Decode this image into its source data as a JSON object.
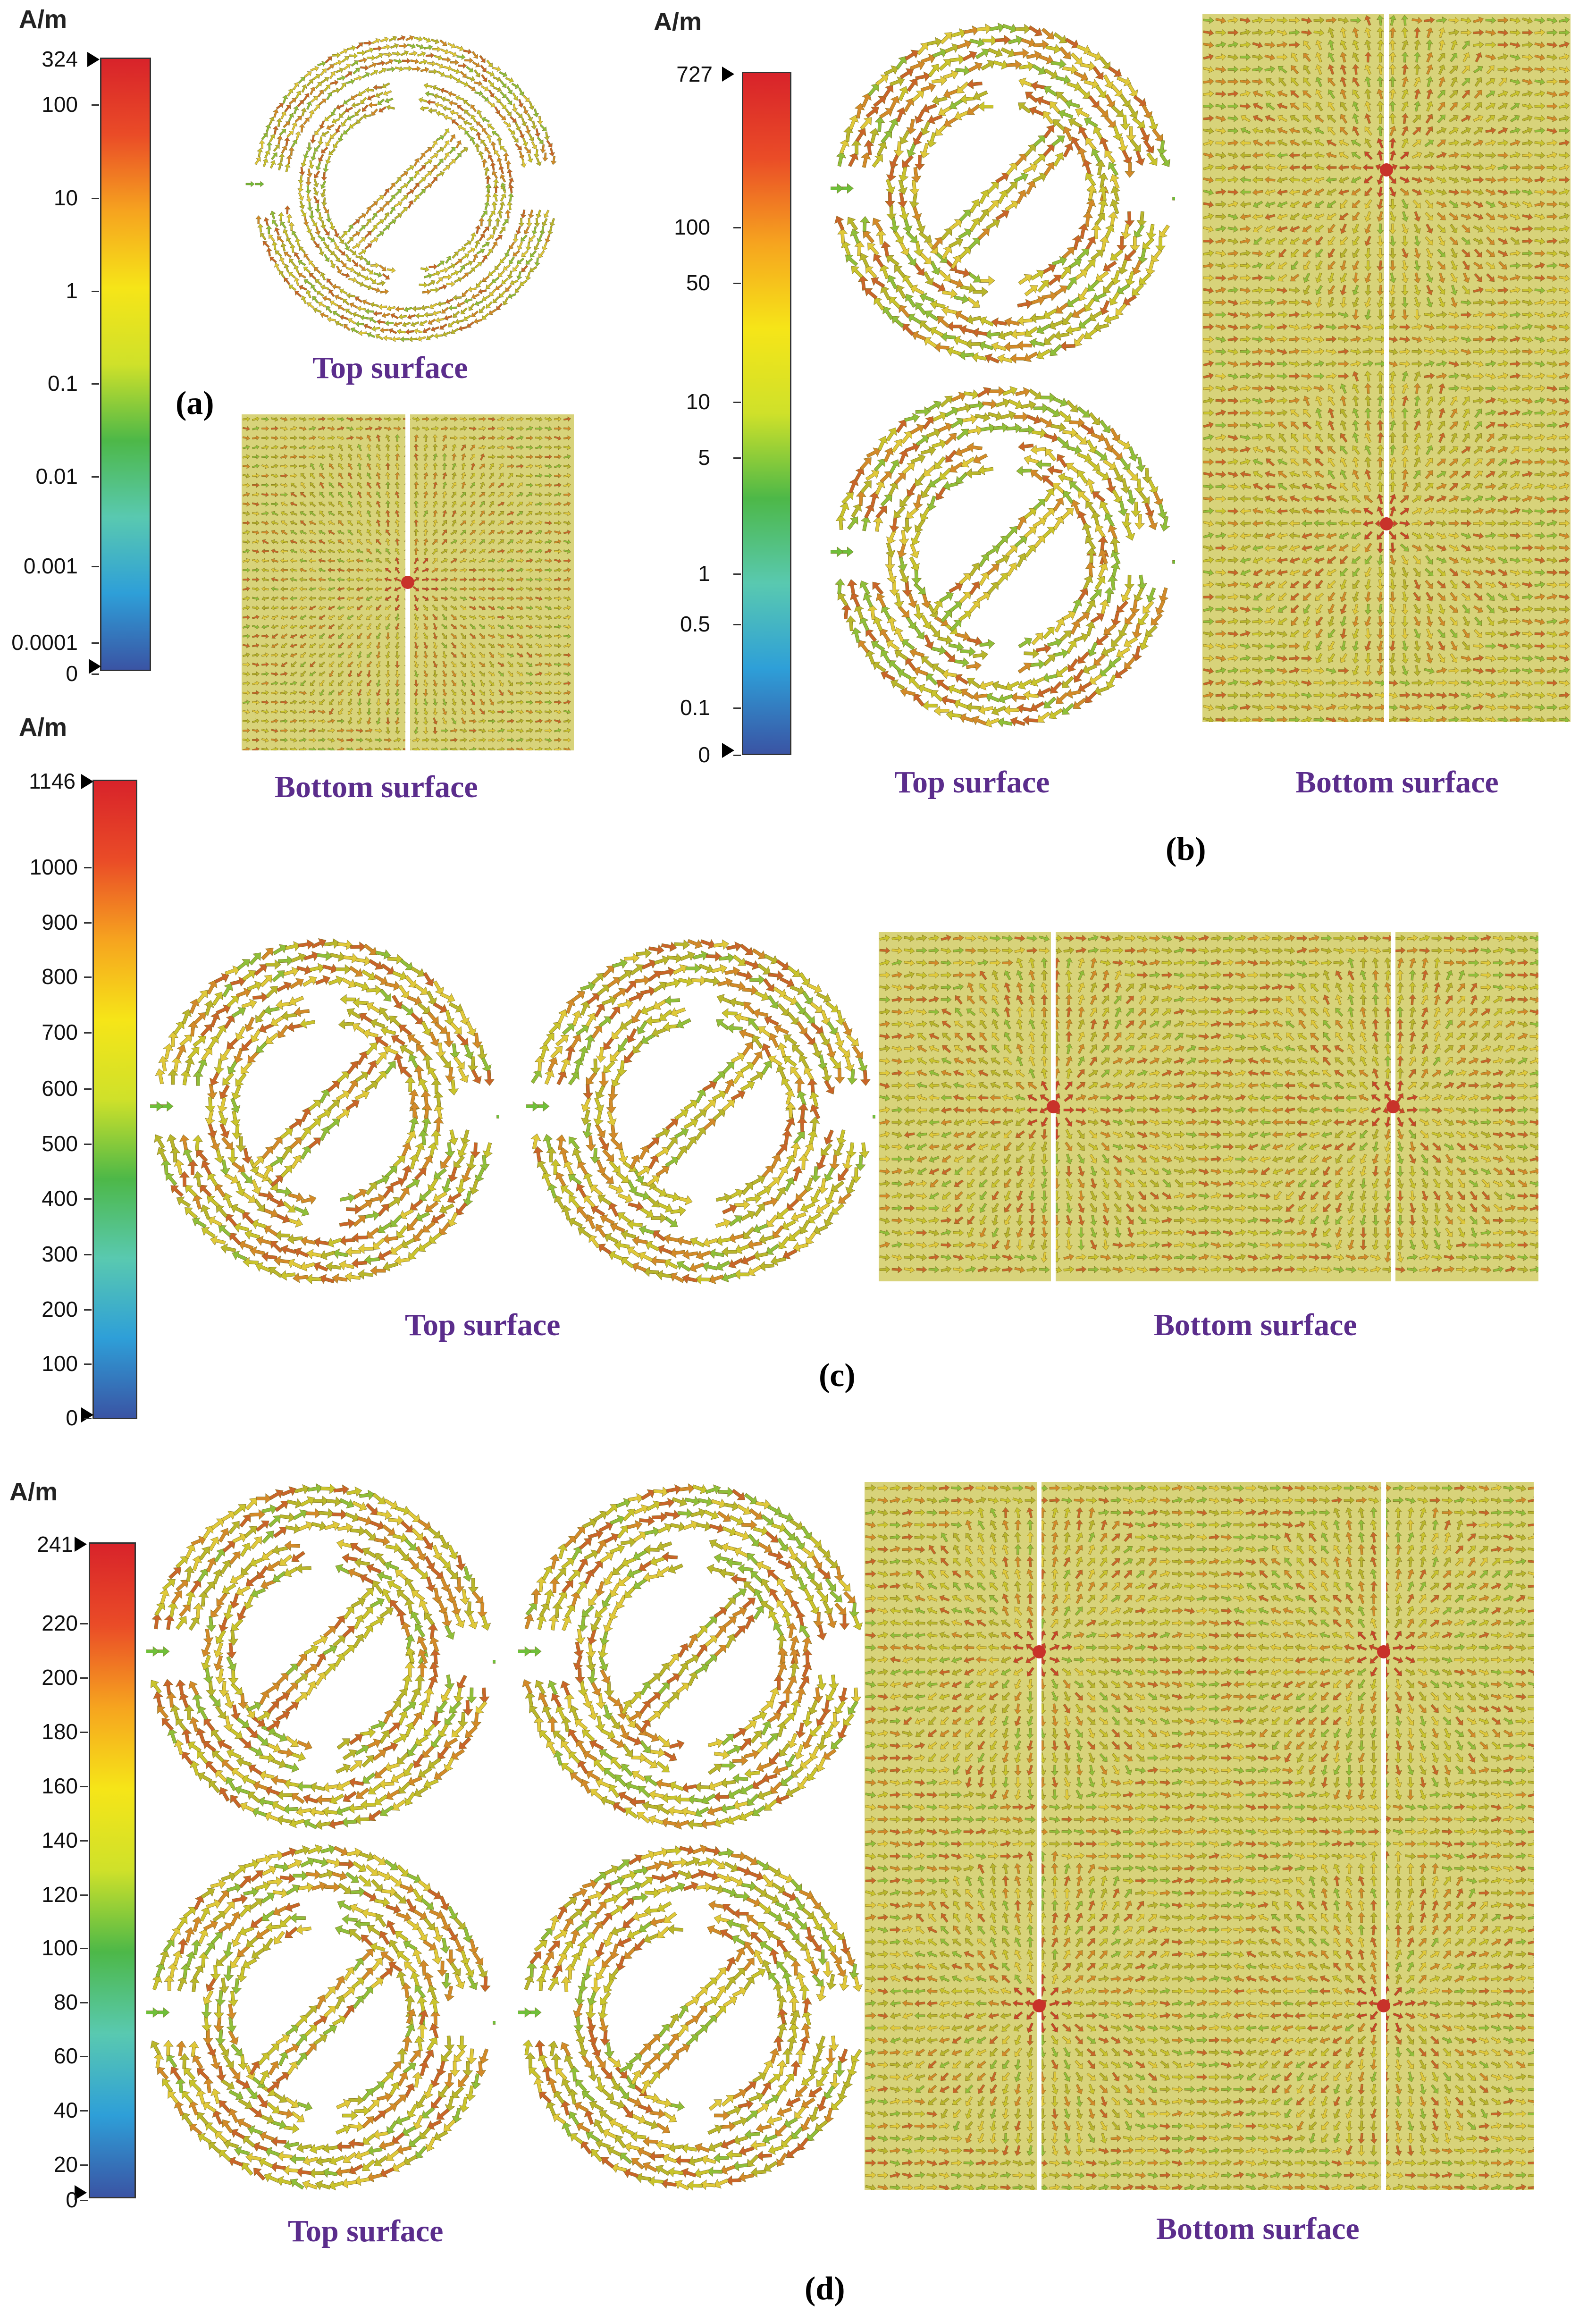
{
  "colorscale": {
    "stops": [
      "#3a54a4",
      "#2e9fd8",
      "#59c9b0",
      "#4db848",
      "#cfe12a",
      "#f6e518",
      "#f6a41f",
      "#ea4c27",
      "#d8232a"
    ],
    "arrow_colors": [
      "#c9c42d",
      "#b8b62c",
      "#d38a2a",
      "#c9652a",
      "#8fbf3a",
      "#e0c93a"
    ]
  },
  "panels": {
    "a": {
      "label": "(a)",
      "unit": "A/m",
      "max_label": "324",
      "ticks": [
        "100",
        "10",
        "1",
        "0.1",
        "0.01",
        "0.001",
        "0.0001",
        "0"
      ],
      "captions": [
        "Top surface",
        "Bottom surface"
      ]
    },
    "b": {
      "label": "(b)",
      "unit": "A/m",
      "max_label": "727",
      "ticks": [
        "100",
        "50",
        "10",
        "5",
        "1",
        "0.5",
        "0.1",
        "0"
      ],
      "captions": [
        "Top surface",
        "Bottom surface"
      ]
    },
    "c": {
      "label": "(c)",
      "unit": "A/m",
      "max_label": "1146",
      "ticks": [
        "1000",
        "900",
        "800",
        "700",
        "600",
        "500",
        "400",
        "300",
        "200",
        "100",
        "0"
      ],
      "captions": [
        "Top surface",
        "Bottom surface"
      ]
    },
    "d": {
      "label": "(d)",
      "unit": "A/m",
      "max_label": "241",
      "ticks": [
        "220",
        "200",
        "180",
        "160",
        "140",
        "120",
        "100",
        "80",
        "60",
        "40",
        "20",
        "0"
      ],
      "captions": [
        "Top surface",
        "Bottom surface"
      ]
    }
  }
}
